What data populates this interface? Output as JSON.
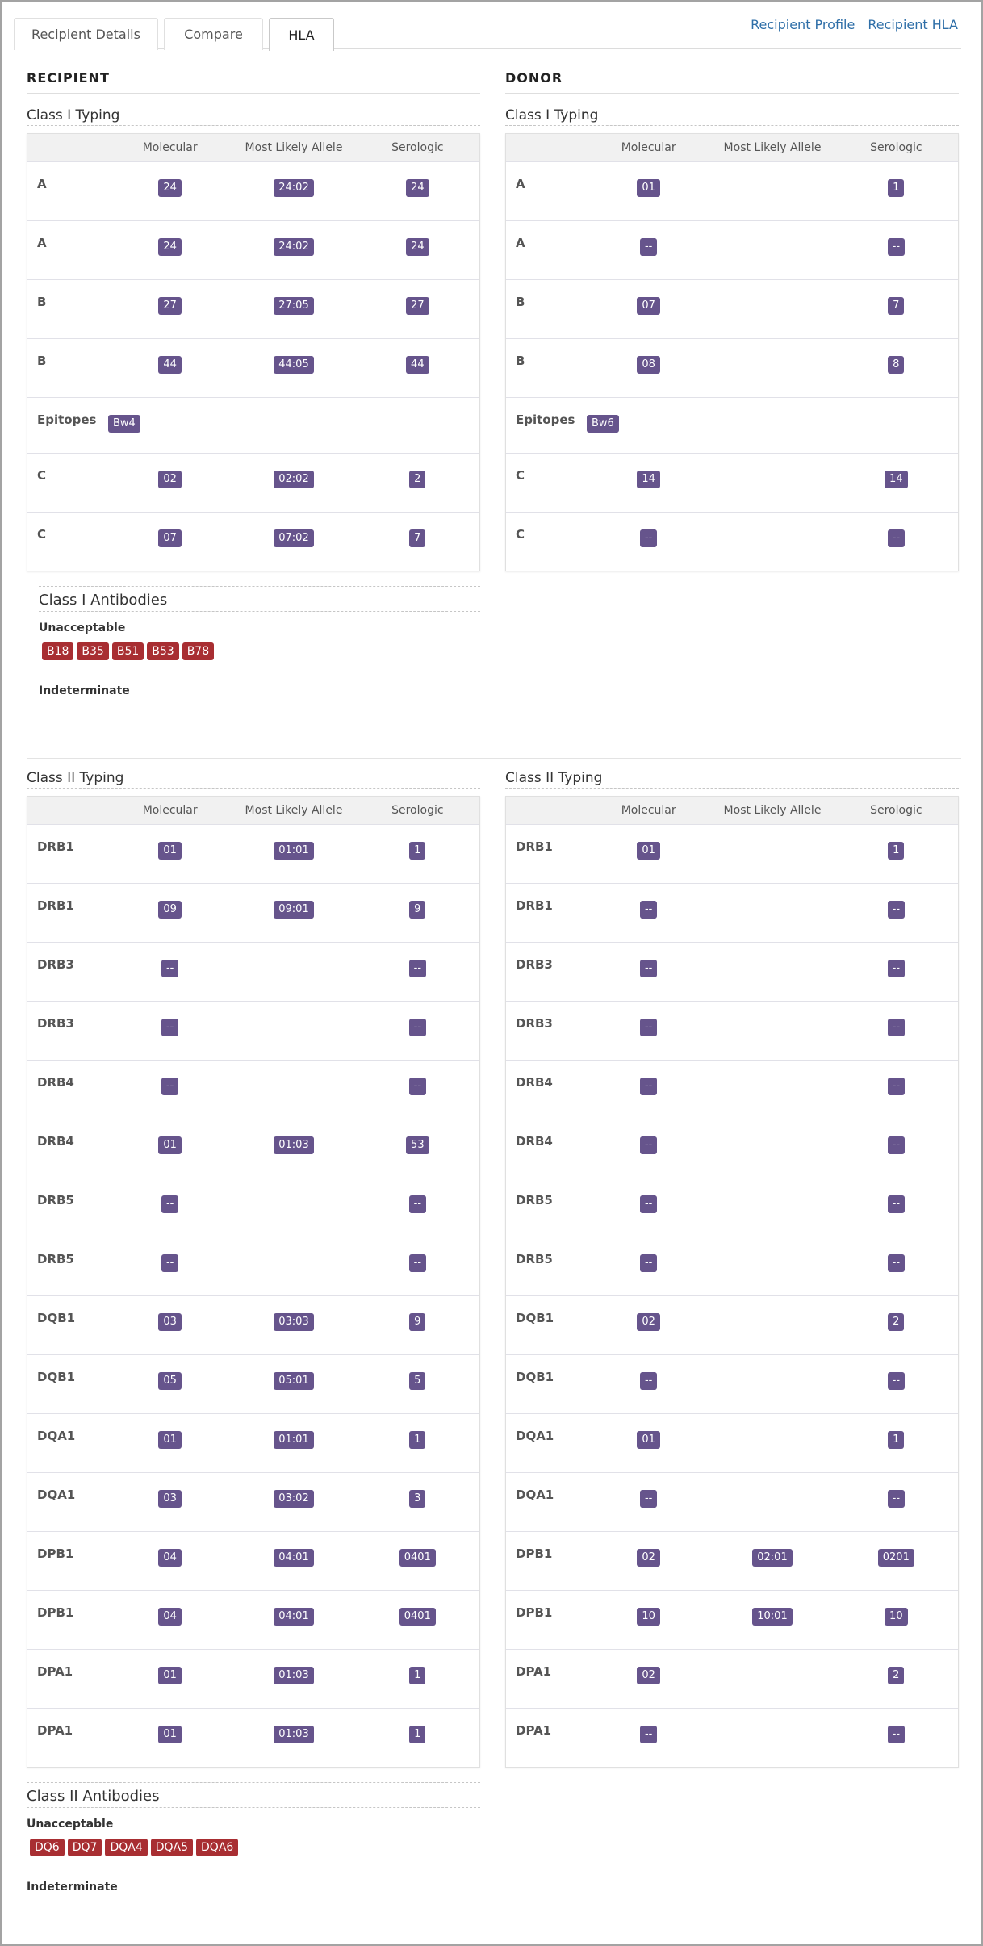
{
  "tabs": [
    {
      "label": "Recipient Details",
      "active": false
    },
    {
      "label": "Compare",
      "active": false
    },
    {
      "label": "HLA",
      "active": true
    }
  ],
  "links": {
    "recipient_profile": "Recipient Profile",
    "recipient_hla": "Recipient HLA"
  },
  "colors": {
    "allele_badge": "#66548c",
    "unacceptable_badge": "#a82e32",
    "link": "#2f6fa8"
  },
  "columns": {
    "molecular": "Molecular",
    "most_likely_allele": "Most Likely Allele",
    "serologic": "Serologic"
  },
  "recipient": {
    "title": "RECIPIENT",
    "class1": {
      "title": "Class I Typing",
      "rows": [
        {
          "locus": "A",
          "molecular": "24",
          "allele": "24:02",
          "serologic": "24"
        },
        {
          "locus": "A",
          "molecular": "24",
          "allele": "24:02",
          "serologic": "24"
        },
        {
          "locus": "B",
          "molecular": "27",
          "allele": "27:05",
          "serologic": "27"
        },
        {
          "locus": "B",
          "molecular": "44",
          "allele": "44:05",
          "serologic": "44"
        },
        {
          "locus": "Epitopes",
          "molecular": "Bw4",
          "allele": null,
          "serologic": null,
          "epitope": true
        },
        {
          "locus": "C",
          "molecular": "02",
          "allele": "02:02",
          "serologic": "2"
        },
        {
          "locus": "C",
          "molecular": "07",
          "allele": "07:02",
          "serologic": "7"
        }
      ]
    },
    "class1_antibodies": {
      "title": "Class I Antibodies",
      "unacceptable_label": "Unacceptable",
      "unacceptable": [
        "B18",
        "B35",
        "B51",
        "B53",
        "B78"
      ],
      "indeterminate_label": "Indeterminate",
      "indeterminate": []
    },
    "class2": {
      "title": "Class II Typing",
      "rows": [
        {
          "locus": "DRB1",
          "molecular": "01",
          "allele": "01:01",
          "serologic": "1"
        },
        {
          "locus": "DRB1",
          "molecular": "09",
          "allele": "09:01",
          "serologic": "9"
        },
        {
          "locus": "DRB3",
          "molecular": "--",
          "allele": null,
          "serologic": "--"
        },
        {
          "locus": "DRB3",
          "molecular": "--",
          "allele": null,
          "serologic": "--"
        },
        {
          "locus": "DRB4",
          "molecular": "--",
          "allele": null,
          "serologic": "--"
        },
        {
          "locus": "DRB4",
          "molecular": "01",
          "allele": "01:03",
          "serologic": "53"
        },
        {
          "locus": "DRB5",
          "molecular": "--",
          "allele": null,
          "serologic": "--"
        },
        {
          "locus": "DRB5",
          "molecular": "--",
          "allele": null,
          "serologic": "--"
        },
        {
          "locus": "DQB1",
          "molecular": "03",
          "allele": "03:03",
          "serologic": "9"
        },
        {
          "locus": "DQB1",
          "molecular": "05",
          "allele": "05:01",
          "serologic": "5"
        },
        {
          "locus": "DQA1",
          "molecular": "01",
          "allele": "01:01",
          "serologic": "1"
        },
        {
          "locus": "DQA1",
          "molecular": "03",
          "allele": "03:02",
          "serologic": "3"
        },
        {
          "locus": "DPB1",
          "molecular": "04",
          "allele": "04:01",
          "serologic": "0401"
        },
        {
          "locus": "DPB1",
          "molecular": "04",
          "allele": "04:01",
          "serologic": "0401"
        },
        {
          "locus": "DPA1",
          "molecular": "01",
          "allele": "01:03",
          "serologic": "1"
        },
        {
          "locus": "DPA1",
          "molecular": "01",
          "allele": "01:03",
          "serologic": "1"
        }
      ]
    },
    "class2_antibodies": {
      "title": "Class II Antibodies",
      "unacceptable_label": "Unacceptable",
      "unacceptable": [
        "DQ6",
        "DQ7",
        "DQA4",
        "DQA5",
        "DQA6"
      ],
      "indeterminate_label": "Indeterminate",
      "indeterminate": []
    }
  },
  "donor": {
    "title": "DONOR",
    "class1": {
      "title": "Class I Typing",
      "rows": [
        {
          "locus": "A",
          "molecular": "01",
          "allele": null,
          "serologic": "1"
        },
        {
          "locus": "A",
          "molecular": "--",
          "allele": null,
          "serologic": "--"
        },
        {
          "locus": "B",
          "molecular": "07",
          "allele": null,
          "serologic": "7"
        },
        {
          "locus": "B",
          "molecular": "08",
          "allele": null,
          "serologic": "8"
        },
        {
          "locus": "Epitopes",
          "molecular": "Bw6",
          "allele": null,
          "serologic": null,
          "epitope": true
        },
        {
          "locus": "C",
          "molecular": "14",
          "allele": null,
          "serologic": "14"
        },
        {
          "locus": "C",
          "molecular": "--",
          "allele": null,
          "serologic": "--"
        }
      ]
    },
    "class2": {
      "title": "Class II Typing",
      "rows": [
        {
          "locus": "DRB1",
          "molecular": "01",
          "allele": null,
          "serologic": "1"
        },
        {
          "locus": "DRB1",
          "molecular": "--",
          "allele": null,
          "serologic": "--"
        },
        {
          "locus": "DRB3",
          "molecular": "--",
          "allele": null,
          "serologic": "--"
        },
        {
          "locus": "DRB3",
          "molecular": "--",
          "allele": null,
          "serologic": "--"
        },
        {
          "locus": "DRB4",
          "molecular": "--",
          "allele": null,
          "serologic": "--"
        },
        {
          "locus": "DRB4",
          "molecular": "--",
          "allele": null,
          "serologic": "--"
        },
        {
          "locus": "DRB5",
          "molecular": "--",
          "allele": null,
          "serologic": "--"
        },
        {
          "locus": "DRB5",
          "molecular": "--",
          "allele": null,
          "serologic": "--"
        },
        {
          "locus": "DQB1",
          "molecular": "02",
          "allele": null,
          "serologic": "2"
        },
        {
          "locus": "DQB1",
          "molecular": "--",
          "allele": null,
          "serologic": "--"
        },
        {
          "locus": "DQA1",
          "molecular": "01",
          "allele": null,
          "serologic": "1"
        },
        {
          "locus": "DQA1",
          "molecular": "--",
          "allele": null,
          "serologic": "--"
        },
        {
          "locus": "DPB1",
          "molecular": "02",
          "allele": "02:01",
          "serologic": "0201"
        },
        {
          "locus": "DPB1",
          "molecular": "10",
          "allele": "10:01",
          "serologic": "10"
        },
        {
          "locus": "DPA1",
          "molecular": "02",
          "allele": null,
          "serologic": "2"
        },
        {
          "locus": "DPA1",
          "molecular": "--",
          "allele": null,
          "serologic": "--"
        }
      ]
    }
  }
}
